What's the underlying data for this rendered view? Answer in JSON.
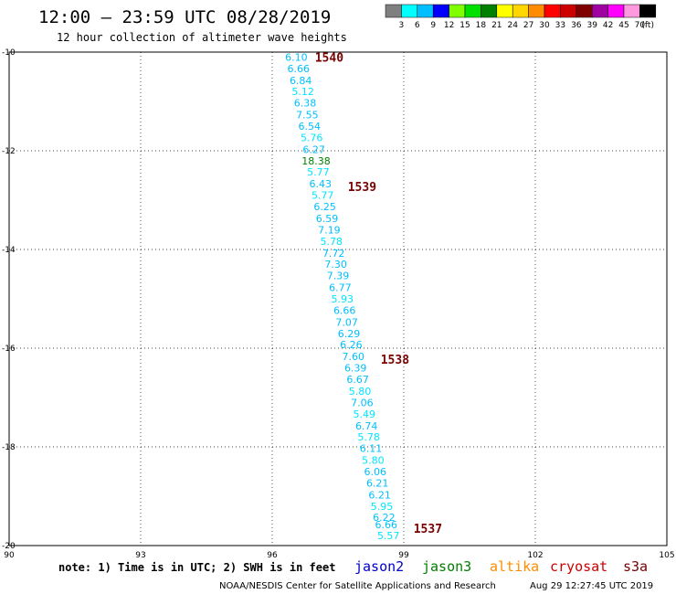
{
  "header": {
    "title": "12:00 – 23:59 UTC 08/28/2019",
    "subtitle": "12 hour collection of altimeter wave heights"
  },
  "legend": {
    "unit": "(ft)",
    "items": [
      {
        "label": "3",
        "color": "#7f7f7f"
      },
      {
        "label": "6",
        "color": "#00ffff"
      },
      {
        "label": "9",
        "color": "#00bfff"
      },
      {
        "label": "12",
        "color": "#0000ff"
      },
      {
        "label": "15",
        "color": "#7fff00"
      },
      {
        "label": "18",
        "color": "#00e000"
      },
      {
        "label": "21",
        "color": "#008000"
      },
      {
        "label": "24",
        "color": "#ffff00"
      },
      {
        "label": "27",
        "color": "#ffd700"
      },
      {
        "label": "30",
        "color": "#ff8c00"
      },
      {
        "label": "33",
        "color": "#ff0000"
      },
      {
        "label": "36",
        "color": "#cc0000"
      },
      {
        "label": "39",
        "color": "#800000"
      },
      {
        "label": "42",
        "color": "#a000a0"
      },
      {
        "label": "45",
        "color": "#ff00ff"
      },
      {
        "label": "70",
        "color": "#ff99dd"
      },
      {
        "label": "",
        "color": "#000000"
      }
    ]
  },
  "chart_data": {
    "type": "scatter",
    "xlim": [
      90,
      105
    ],
    "ylim": [
      -20,
      -10
    ],
    "x_ticks": [
      {
        "value": 90,
        "label": "90"
      },
      {
        "value": 93,
        "label": "93"
      },
      {
        "value": 96,
        "label": "96"
      },
      {
        "value": 99,
        "label": "99"
      },
      {
        "value": 102,
        "label": "102"
      },
      {
        "value": 105,
        "label": "105"
      }
    ],
    "y_ticks": [
      {
        "value": -10,
        "label": "-10"
      },
      {
        "value": -12,
        "label": "-12"
      },
      {
        "value": -14,
        "label": "-14"
      },
      {
        "value": -16,
        "label": "-16"
      },
      {
        "value": -18,
        "label": "-18"
      },
      {
        "value": -20,
        "label": "-20"
      }
    ],
    "grid": true,
    "points": [
      {
        "lon": 96.55,
        "lat": -10.1,
        "swh": "6.10",
        "color": "#00bfff"
      },
      {
        "lon": 96.6,
        "lat": -10.33,
        "swh": "6.66",
        "color": "#00bfff"
      },
      {
        "lon": 96.65,
        "lat": -10.57,
        "swh": "6.84",
        "color": "#00bfff"
      },
      {
        "lon": 96.7,
        "lat": -10.8,
        "swh": "5.12",
        "color": "#00e5ff"
      },
      {
        "lon": 96.75,
        "lat": -11.03,
        "swh": "6.38",
        "color": "#00bfff"
      },
      {
        "lon": 96.8,
        "lat": -11.27,
        "swh": "7.55",
        "color": "#00bfff"
      },
      {
        "lon": 96.85,
        "lat": -11.5,
        "swh": "6.54",
        "color": "#00bfff"
      },
      {
        "lon": 96.9,
        "lat": -11.73,
        "swh": "5.76",
        "color": "#00e5ff"
      },
      {
        "lon": 96.95,
        "lat": -11.97,
        "swh": "6.27",
        "color": "#00bfff"
      },
      {
        "lon": 97.0,
        "lat": -12.2,
        "swh": "18.38",
        "color": "#008000"
      },
      {
        "lon": 97.05,
        "lat": -12.43,
        "swh": "5.77",
        "color": "#00e5ff"
      },
      {
        "lon": 97.1,
        "lat": -12.67,
        "swh": "6.43",
        "color": "#00bfff"
      },
      {
        "lon": 97.15,
        "lat": -12.9,
        "swh": "5.77",
        "color": "#00e5ff"
      },
      {
        "lon": 97.2,
        "lat": -13.13,
        "swh": "6.25",
        "color": "#00bfff"
      },
      {
        "lon": 97.25,
        "lat": -13.37,
        "swh": "6.59",
        "color": "#00bfff"
      },
      {
        "lon": 97.3,
        "lat": -13.6,
        "swh": "7.19",
        "color": "#00bfff"
      },
      {
        "lon": 97.35,
        "lat": -13.83,
        "swh": "5.78",
        "color": "#00e5ff"
      },
      {
        "lon": 97.4,
        "lat": -14.07,
        "swh": "7.72",
        "color": "#00bfff"
      },
      {
        "lon": 97.45,
        "lat": -14.3,
        "swh": "7.30",
        "color": "#00bfff"
      },
      {
        "lon": 97.5,
        "lat": -14.53,
        "swh": "7.39",
        "color": "#00bfff"
      },
      {
        "lon": 97.55,
        "lat": -14.77,
        "swh": "6.77",
        "color": "#00bfff"
      },
      {
        "lon": 97.6,
        "lat": -15.0,
        "swh": "5.93",
        "color": "#00e5ff"
      },
      {
        "lon": 97.65,
        "lat": -15.23,
        "swh": "6.66",
        "color": "#00bfff"
      },
      {
        "lon": 97.7,
        "lat": -15.47,
        "swh": "7.07",
        "color": "#00bfff"
      },
      {
        "lon": 97.75,
        "lat": -15.7,
        "swh": "6.29",
        "color": "#00bfff"
      },
      {
        "lon": 97.8,
        "lat": -15.93,
        "swh": "6.26",
        "color": "#00bfff"
      },
      {
        "lon": 97.85,
        "lat": -16.17,
        "swh": "7.60",
        "color": "#00bfff"
      },
      {
        "lon": 97.9,
        "lat": -16.4,
        "swh": "6.39",
        "color": "#00bfff"
      },
      {
        "lon": 97.95,
        "lat": -16.63,
        "swh": "6.67",
        "color": "#00bfff"
      },
      {
        "lon": 98.0,
        "lat": -16.87,
        "swh": "5.80",
        "color": "#00e5ff"
      },
      {
        "lon": 98.05,
        "lat": -17.1,
        "swh": "7.06",
        "color": "#00bfff"
      },
      {
        "lon": 98.1,
        "lat": -17.33,
        "swh": "5.49",
        "color": "#00e5ff"
      },
      {
        "lon": 98.15,
        "lat": -17.57,
        "swh": "6.74",
        "color": "#00bfff"
      },
      {
        "lon": 98.2,
        "lat": -17.8,
        "swh": "5.78",
        "color": "#00e5ff"
      },
      {
        "lon": 98.25,
        "lat": -18.03,
        "swh": "6.11",
        "color": "#00bfff"
      },
      {
        "lon": 98.3,
        "lat": -18.27,
        "swh": "5.80",
        "color": "#00e5ff"
      },
      {
        "lon": 98.35,
        "lat": -18.5,
        "swh": "6.06",
        "color": "#00bfff"
      },
      {
        "lon": 98.4,
        "lat": -18.73,
        "swh": "6.21",
        "color": "#00bfff"
      },
      {
        "lon": 98.45,
        "lat": -18.97,
        "swh": "6.21",
        "color": "#00bfff"
      },
      {
        "lon": 98.5,
        "lat": -19.2,
        "swh": "5.95",
        "color": "#00e5ff"
      },
      {
        "lon": 98.55,
        "lat": -19.43,
        "swh": "6.22",
        "color": "#00bfff"
      },
      {
        "lon": 98.6,
        "lat": -19.57,
        "swh": "6.66",
        "color": "#00bfff"
      },
      {
        "lon": 98.65,
        "lat": -19.8,
        "swh": "5.57",
        "color": "#00e5ff"
      }
    ],
    "pass_labels": [
      {
        "label": "1540",
        "lon": 97.3,
        "lat": -10.1
      },
      {
        "label": "1539",
        "lon": 98.05,
        "lat": -12.72
      },
      {
        "label": "1538",
        "lon": 98.8,
        "lat": -16.22
      },
      {
        "label": "1537",
        "lon": 99.55,
        "lat": -19.65
      }
    ]
  },
  "footer": {
    "note": "note: 1) Time is in UTC; 2) SWH is in feet",
    "satellites": [
      {
        "name": "jason2",
        "color": "#0000cc"
      },
      {
        "name": "jason3",
        "color": "#008000"
      },
      {
        "name": "altika",
        "color": "#ff8c00"
      },
      {
        "name": "cryosat",
        "color": "#cc0000"
      },
      {
        "name": "s3a",
        "color": "#7a0000"
      }
    ],
    "credit": "NOAA/NESDIS Center for Satellite Applications and Research",
    "timestamp": "Aug 29 12:27:45 UTC 2019"
  }
}
